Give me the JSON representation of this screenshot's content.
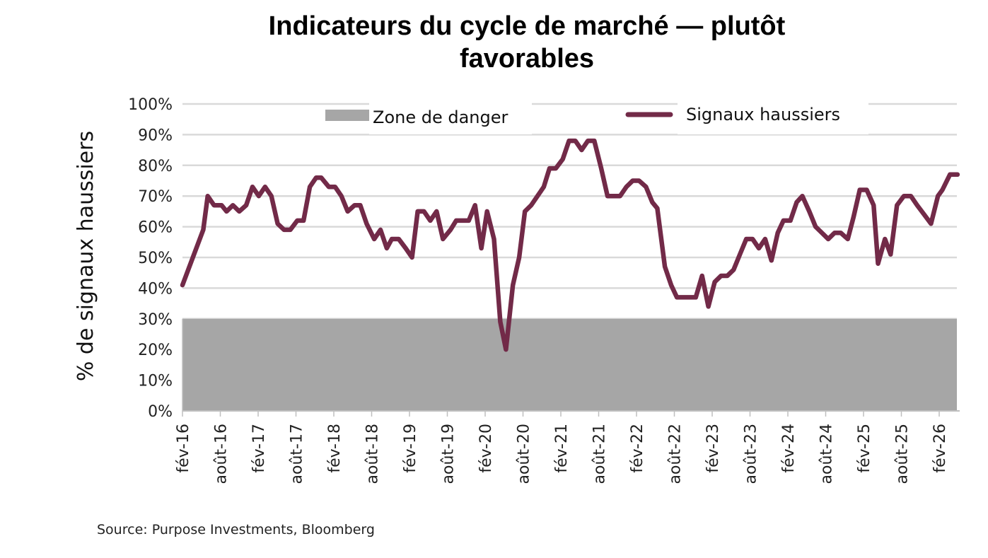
{
  "chart_data": {
    "type": "line",
    "title": "Indicateurs du cycle de marché — plutôt favorables",
    "title_lines": [
      "Indicateurs du cycle de marché — plutôt",
      "favorables"
    ],
    "xlabel": "",
    "ylabel": "% de signaux haussiers",
    "ylim": [
      0,
      100
    ],
    "yticks": [
      0,
      10,
      20,
      30,
      40,
      50,
      60,
      70,
      80,
      90,
      100
    ],
    "ytick_labels": [
      "0%",
      "10%",
      "20%",
      "30%",
      "40%",
      "50%",
      "60%",
      "70%",
      "80%",
      "90%",
      "100%"
    ],
    "xlim_months": [
      0,
      123
    ],
    "xtick_months": [
      0,
      6,
      12,
      18,
      24,
      30,
      36,
      42,
      48,
      54,
      60,
      66,
      72,
      78,
      84,
      90,
      96,
      102,
      108,
      114,
      120
    ],
    "xtick_labels": [
      "fév-16",
      "août-16",
      "fév-17",
      "août-17",
      "fév-18",
      "août-18",
      "fév-19",
      "août-19",
      "fév-20",
      "août-20",
      "fév-21",
      "août-21",
      "fév-22",
      "août-22",
      "fév-23",
      "août-23",
      "fév-24",
      "août-24",
      "fév-25",
      "août-25",
      "fév-26"
    ],
    "grid": true,
    "legend": [
      {
        "name": "Zone de danger",
        "type": "area",
        "color": "#a6a6a6"
      },
      {
        "name": "Signaux haussiers",
        "type": "line",
        "color": "#722a48"
      }
    ],
    "legend_placement": "top",
    "bands": [
      {
        "name": "Zone de danger",
        "from": 0,
        "to": 30,
        "color": "#a6a6a6"
      }
    ],
    "series": [
      {
        "name": "Signaux haussiers",
        "color": "#722a48",
        "x_months": [
          0,
          3.3,
          4.0,
          5.0,
          6.2,
          7.0,
          8.0,
          9.0,
          10.1,
          11.1,
          12.1,
          13.1,
          14.1,
          15.1,
          16.1,
          17.1,
          18.2,
          19.2,
          20.2,
          21.2,
          22.0,
          23.2,
          24.2,
          25.2,
          26.2,
          27.3,
          28.2,
          29.2,
          30.4,
          31.4,
          32.4,
          33.2,
          34.3,
          35.4,
          36.4,
          37.3,
          38.3,
          39.3,
          40.3,
          41.3,
          42.5,
          43.4,
          44.4,
          45.4,
          46.4,
          47.4,
          48.3,
          49.4,
          50.4,
          51.3,
          52.4,
          53.4,
          54.3,
          55.3,
          56.3,
          57.3,
          58.2,
          59.2,
          60.3,
          61.3,
          62.3,
          63.3,
          64.3,
          65.3,
          66.4,
          67.4,
          68.4,
          69.4,
          70.4,
          71.4,
          72.4,
          73.5,
          74.5,
          75.3,
          76.5,
          77.5,
          78.4,
          79.4,
          80.4,
          81.4,
          82.4,
          83.4,
          84.4,
          85.4,
          86.4,
          87.4,
          88.4,
          89.4,
          90.4,
          91.4,
          92.4,
          93.4,
          94.4,
          95.3,
          96.4,
          97.4,
          98.3,
          99.4,
          100.4,
          101.4,
          102.4,
          103.4,
          104.4,
          105.5,
          106.4,
          107.4,
          108.5,
          109.6,
          110.3,
          111.4,
          112.3,
          113.3,
          114.4,
          115.5,
          116.5,
          117.6,
          118.7,
          119.8,
          120.5,
          121.7,
          122.9
        ],
        "values": [
          41,
          59,
          70,
          67,
          67,
          65,
          67,
          65,
          67,
          73,
          70,
          73,
          70,
          61,
          59,
          59,
          62,
          62,
          73,
          76,
          76,
          73,
          73,
          70,
          65,
          67,
          67,
          61,
          56,
          59,
          53,
          56,
          56,
          53,
          50,
          65,
          65,
          62,
          65,
          56,
          59,
          62,
          62,
          62,
          67,
          53,
          65,
          56,
          29,
          20,
          41,
          50,
          65,
          67,
          70,
          73,
          79,
          79,
          82,
          88,
          88,
          85,
          88,
          88,
          79,
          70,
          70,
          70,
          73,
          75,
          75,
          73,
          68,
          66,
          47,
          41,
          37,
          37,
          37,
          37,
          44,
          34,
          42,
          44,
          44,
          46,
          51,
          56,
          56,
          53,
          56,
          49,
          58,
          62,
          62,
          68,
          70,
          65,
          60,
          58,
          56,
          58,
          58,
          56,
          63,
          72,
          72,
          67,
          48,
          56,
          51,
          67,
          70,
          70,
          67,
          64,
          61,
          70,
          72,
          77,
          77
        ]
      }
    ]
  },
  "source": "Source: Purpose Investments, Bloomberg"
}
